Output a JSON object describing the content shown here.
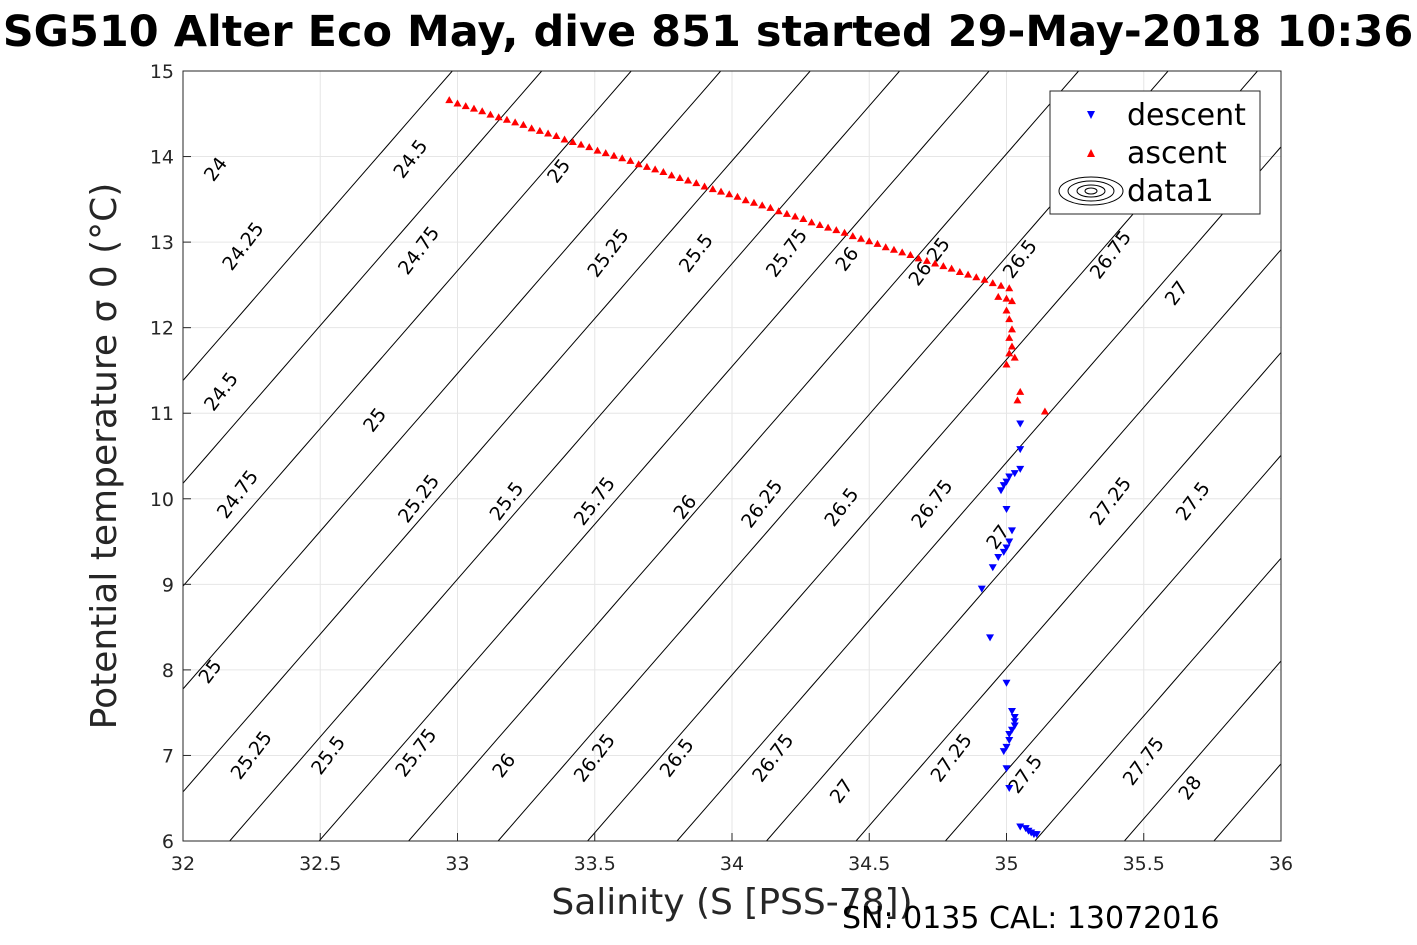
{
  "chart_data": {
    "type": "scatter",
    "title": "SG510 Alter Eco May, dive 851 started 29-May-2018 10:36",
    "xlabel": "Salinity (S [PSS-78])",
    "ylabel": "Potential temperature σ 0 (°C)",
    "xlim": [
      32,
      36
    ],
    "ylim": [
      6,
      15
    ],
    "xticks": [
      "32",
      "32.5",
      "33",
      "33.5",
      "34",
      "34.5",
      "35",
      "35.5",
      "36"
    ],
    "yticks": [
      "6",
      "7",
      "8",
      "9",
      "10",
      "11",
      "12",
      "13",
      "14",
      "15"
    ],
    "grid": true,
    "legend_position": "top-right",
    "footer": "SN: 0135  CAL: 13072016",
    "contour_levels": [
      24,
      24.25,
      24.5,
      24.75,
      25,
      25.25,
      25.5,
      25.75,
      26,
      26.25,
      26.5,
      26.75,
      27,
      27.25,
      27.5,
      27.75,
      28
    ],
    "contour_labels": [
      {
        "text": "24",
        "s": 32.12,
        "t": 13.85
      },
      {
        "text": "24.25",
        "s": 32.22,
        "t": 12.95
      },
      {
        "text": "24.5",
        "s": 32.14,
        "t": 11.25
      },
      {
        "text": "24.75",
        "s": 32.2,
        "t": 10.05
      },
      {
        "text": "25",
        "s": 32.1,
        "t": 7.98
      },
      {
        "text": "25.25",
        "s": 32.25,
        "t": 7.0
      },
      {
        "text": "24.5",
        "s": 32.83,
        "t": 13.97
      },
      {
        "text": "24.75",
        "s": 32.86,
        "t": 12.9
      },
      {
        "text": "25",
        "s": 32.7,
        "t": 10.92
      },
      {
        "text": "25.25",
        "s": 32.86,
        "t": 10.0
      },
      {
        "text": "25.5",
        "s": 32.53,
        "t": 7.0
      },
      {
        "text": "25.75",
        "s": 32.85,
        "t": 7.03
      },
      {
        "text": "25",
        "s": 33.37,
        "t": 13.83
      },
      {
        "text": "25.25",
        "s": 33.55,
        "t": 12.87
      },
      {
        "text": "25.5",
        "s": 33.87,
        "t": 12.87
      },
      {
        "text": "25.75",
        "s": 34.2,
        "t": 12.87
      },
      {
        "text": "26",
        "s": 34.42,
        "t": 12.8
      },
      {
        "text": "26.25",
        "s": 34.72,
        "t": 12.77
      },
      {
        "text": "26.5",
        "s": 35.05,
        "t": 12.8
      },
      {
        "text": "26.75",
        "s": 35.38,
        "t": 12.85
      },
      {
        "text": "27",
        "s": 35.62,
        "t": 12.4
      },
      {
        "text": "25.5",
        "s": 33.18,
        "t": 9.97
      },
      {
        "text": "25.75",
        "s": 33.5,
        "t": 9.97
      },
      {
        "text": "26",
        "s": 33.83,
        "t": 9.9
      },
      {
        "text": "26.25",
        "s": 34.11,
        "t": 9.94
      },
      {
        "text": "26.5",
        "s": 34.4,
        "t": 9.9
      },
      {
        "text": "26.75",
        "s": 34.73,
        "t": 9.94
      },
      {
        "text": "27",
        "s": 34.97,
        "t": 9.55
      },
      {
        "text": "27.25",
        "s": 35.38,
        "t": 9.97
      },
      {
        "text": "27.5",
        "s": 35.68,
        "t": 9.97
      },
      {
        "text": "26",
        "s": 33.17,
        "t": 6.88
      },
      {
        "text": "26.25",
        "s": 33.5,
        "t": 6.97
      },
      {
        "text": "26.5",
        "s": 33.8,
        "t": 6.97
      },
      {
        "text": "26.75",
        "s": 34.15,
        "t": 6.97
      },
      {
        "text": "27",
        "s": 34.4,
        "t": 6.58
      },
      {
        "text": "27.25",
        "s": 34.8,
        "t": 6.97
      },
      {
        "text": "27.5",
        "s": 35.07,
        "t": 6.78
      },
      {
        "text": "27.75",
        "s": 35.5,
        "t": 6.93
      },
      {
        "text": "28",
        "s": 35.67,
        "t": 6.62
      }
    ],
    "series": [
      {
        "name": "descent",
        "marker": "triangle-down",
        "color": "#0000ff",
        "points": [
          [
            35.05,
            10.88
          ],
          [
            35.05,
            10.58
          ],
          [
            35.05,
            10.35
          ],
          [
            35.03,
            10.3
          ],
          [
            35.01,
            10.26
          ],
          [
            35.0,
            10.2
          ],
          [
            34.99,
            10.16
          ],
          [
            34.98,
            10.1
          ],
          [
            35.0,
            9.88
          ],
          [
            35.02,
            9.63
          ],
          [
            35.01,
            9.5
          ],
          [
            35.0,
            9.43
          ],
          [
            34.99,
            9.38
          ],
          [
            34.97,
            9.32
          ],
          [
            34.95,
            9.2
          ],
          [
            34.91,
            8.95
          ],
          [
            34.94,
            8.38
          ],
          [
            35.0,
            7.85
          ],
          [
            35.02,
            7.52
          ],
          [
            35.03,
            7.45
          ],
          [
            35.03,
            7.4
          ],
          [
            35.03,
            7.35
          ],
          [
            35.02,
            7.3
          ],
          [
            35.01,
            7.25
          ],
          [
            35.01,
            7.18
          ],
          [
            35.0,
            7.1
          ],
          [
            34.99,
            7.05
          ],
          [
            35.0,
            6.85
          ],
          [
            35.01,
            6.62
          ],
          [
            35.05,
            6.17
          ],
          [
            35.07,
            6.15
          ],
          [
            35.08,
            6.12
          ],
          [
            35.09,
            6.1
          ],
          [
            35.1,
            6.08
          ],
          [
            35.11,
            6.08
          ]
        ]
      },
      {
        "name": "ascent",
        "marker": "triangle-up",
        "color": "#ff0000",
        "points": [
          [
            32.97,
            14.66
          ],
          [
            33.0,
            14.62
          ],
          [
            33.03,
            14.59
          ],
          [
            33.06,
            14.56
          ],
          [
            33.09,
            14.53
          ],
          [
            33.12,
            14.49
          ],
          [
            33.15,
            14.46
          ],
          [
            33.18,
            14.43
          ],
          [
            33.21,
            14.4
          ],
          [
            33.24,
            14.37
          ],
          [
            33.27,
            14.33
          ],
          [
            33.3,
            14.3
          ],
          [
            33.33,
            14.27
          ],
          [
            33.36,
            14.24
          ],
          [
            33.39,
            14.2
          ],
          [
            33.42,
            14.17
          ],
          [
            33.45,
            14.14
          ],
          [
            33.48,
            14.11
          ],
          [
            33.51,
            14.07
          ],
          [
            33.54,
            14.04
          ],
          [
            33.57,
            14.01
          ],
          [
            33.6,
            13.98
          ],
          [
            33.63,
            13.95
          ],
          [
            33.66,
            13.91
          ],
          [
            33.69,
            13.88
          ],
          [
            33.72,
            13.85
          ],
          [
            33.75,
            13.82
          ],
          [
            33.78,
            13.78
          ],
          [
            33.81,
            13.75
          ],
          [
            33.84,
            13.72
          ],
          [
            33.87,
            13.69
          ],
          [
            33.9,
            13.65
          ],
          [
            33.93,
            13.62
          ],
          [
            33.96,
            13.59
          ],
          [
            33.99,
            13.56
          ],
          [
            34.02,
            13.53
          ],
          [
            34.05,
            13.49
          ],
          [
            34.08,
            13.46
          ],
          [
            34.11,
            13.43
          ],
          [
            34.14,
            13.4
          ],
          [
            34.17,
            13.36
          ],
          [
            34.2,
            13.33
          ],
          [
            34.23,
            13.3
          ],
          [
            34.26,
            13.27
          ],
          [
            34.29,
            13.23
          ],
          [
            34.32,
            13.2
          ],
          [
            34.35,
            13.17
          ],
          [
            34.38,
            13.14
          ],
          [
            34.41,
            13.11
          ],
          [
            34.44,
            13.07
          ],
          [
            34.47,
            13.04
          ],
          [
            34.5,
            13.01
          ],
          [
            34.53,
            12.98
          ],
          [
            34.56,
            12.94
          ],
          [
            34.59,
            12.91
          ],
          [
            34.62,
            12.88
          ],
          [
            34.65,
            12.85
          ],
          [
            34.68,
            12.81
          ],
          [
            34.71,
            12.78
          ],
          [
            34.74,
            12.75
          ],
          [
            34.77,
            12.72
          ],
          [
            34.8,
            12.69
          ],
          [
            34.83,
            12.65
          ],
          [
            34.86,
            12.62
          ],
          [
            34.89,
            12.59
          ],
          [
            34.92,
            12.56
          ],
          [
            34.95,
            12.52
          ],
          [
            34.98,
            12.49
          ],
          [
            35.01,
            12.46
          ],
          [
            34.97,
            12.36
          ],
          [
            35.0,
            12.34
          ],
          [
            35.02,
            12.31
          ],
          [
            35.0,
            12.2
          ],
          [
            35.01,
            12.1
          ],
          [
            35.02,
            11.98
          ],
          [
            35.01,
            11.88
          ],
          [
            35.02,
            11.78
          ],
          [
            35.01,
            11.7
          ],
          [
            35.03,
            11.65
          ],
          [
            35.0,
            11.57
          ],
          [
            35.05,
            11.25
          ],
          [
            35.04,
            11.15
          ],
          [
            35.14,
            11.02
          ]
        ]
      },
      {
        "name": "data1",
        "marker": "contour",
        "color": "#000000",
        "points": []
      }
    ]
  }
}
